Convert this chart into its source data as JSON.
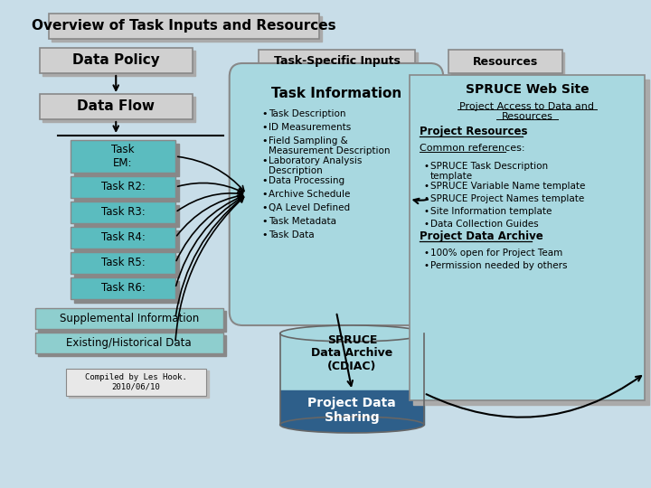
{
  "bg_color": "#c8dde8",
  "title": "Overview of Task Inputs and Resources",
  "title_box_color": "#d0d0d0",
  "title_box_edge": "#888888",
  "data_policy_label": "Data Policy",
  "data_flow_label": "Data Flow",
  "task_boxes": [
    "Task\nEM:",
    "Task R2:",
    "Task R3:",
    "Task R4:",
    "Task R5:",
    "Task R6:"
  ],
  "task_box_color": "#5bbcbf",
  "task_box_edge": "#888888",
  "supp_label": "Supplemental Information",
  "hist_label": "Existing/Historical Data",
  "supp_hist_color": "#8ecece",
  "supp_hist_edge": "#888888",
  "compiled_label": "Compiled by Les Hook.\n2010/06/10",
  "task_specific_label": "Task-Specific Inputs",
  "task_info_title": "Task Information",
  "task_info_bg": "#a8d8e0",
  "task_info_items": [
    "Task Description",
    "ID Measurements",
    "Field Sampling &\nMeasurement Description",
    "Laboratory Analysis\nDescription",
    "Data Processing",
    "Archive Schedule",
    "QA Level Defined",
    "Task Metadata",
    "Task Data"
  ],
  "resources_label": "Resources",
  "resources_box_bg": "#a8d8e0",
  "resources_box_edge": "#888888",
  "spruce_web_title": "SPRUCE Web Site",
  "project_access_line1": "Project Access to Data and",
  "project_access_line2": "Resources",
  "project_resources_label": "Project Resources",
  "common_refs_label": "Common references:",
  "common_refs_items": [
    "SPRUCE Task Description\ntemplate",
    "SPRUCE Variable Name template",
    "SPRUCE Project Names template",
    "Site Information template",
    "Data Collection Guides"
  ],
  "project_data_archive_label": "Project Data Archive",
  "project_data_archive_items": [
    "100% open for Project Team",
    "Permission needed by others"
  ],
  "spruce_archive_label": "SPRUCE\nData Archive\n(CDIAC)",
  "project_data_sharing_label": "Project Data\nSharing",
  "cylinder_bg": "#a8d8e0",
  "cylinder_bottom_bg": "#2e5f8a"
}
